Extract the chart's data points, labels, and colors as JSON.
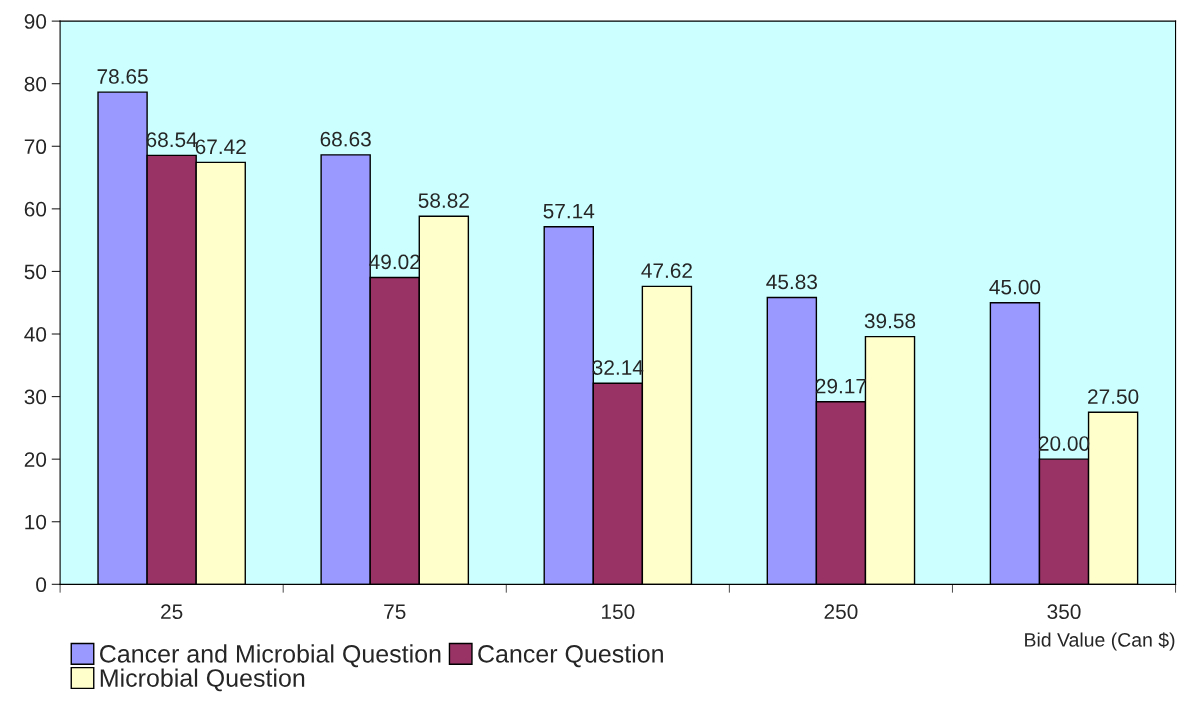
{
  "chart_data": {
    "type": "bar",
    "xlabel": "Bid Value (Can $)",
    "categories": [
      "25",
      "75",
      "150",
      "250",
      "350"
    ],
    "series": [
      {
        "name": "Cancer and Microbial Question",
        "color": "#9999ff",
        "values": [
          78.65,
          68.63,
          57.14,
          45.83,
          45.0
        ],
        "value_labels": [
          "78.65",
          "68.63",
          "57.14",
          "45.83",
          "45.00"
        ]
      },
      {
        "name": "Cancer Question",
        "color": "#993366",
        "values": [
          68.54,
          49.02,
          32.14,
          29.17,
          20.0
        ],
        "value_labels": [
          "68.54",
          "49.02",
          "32.14",
          "29.17",
          "20.00"
        ]
      },
      {
        "name": "Microbial Question",
        "color": "#ffffcc",
        "values": [
          67.42,
          58.82,
          47.62,
          39.58,
          27.5
        ],
        "value_labels": [
          "67.42",
          "58.82",
          "47.62",
          "39.58",
          "27.50"
        ]
      }
    ],
    "ylim": [
      0,
      90
    ],
    "yticks": [
      0,
      10,
      20,
      30,
      40,
      50,
      60,
      70,
      80,
      90
    ],
    "grid": false,
    "legend": "bottom"
  }
}
